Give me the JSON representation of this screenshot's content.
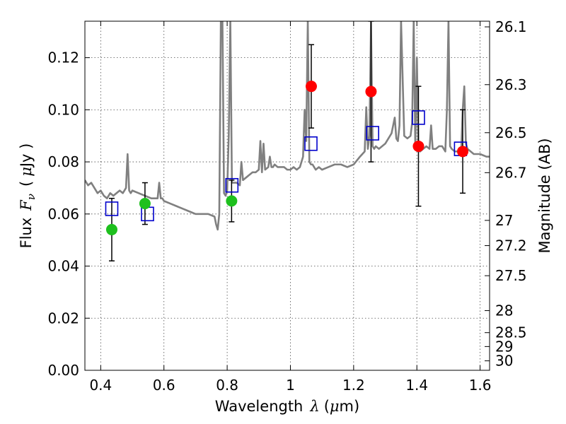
{
  "chart_data": {
    "type": "scatter",
    "xlabel": {
      "text": "Wavelength",
      "math": "λ",
      "unit_pre": "(",
      "unit_mu": "μ",
      "unit_post": "m)"
    },
    "ylabel": {
      "text": "Flux",
      "math": "F",
      "math_sub": "ν",
      "unit_open": "(",
      "unit_mu": "μ",
      "unit_close": "Jy )"
    },
    "y2label": "Magnitude (AB)",
    "xlim": [
      0.35,
      1.63
    ],
    "ylim": [
      0.0,
      0.134
    ],
    "grid": true,
    "x_ticks": [
      {
        "value": 0.4,
        "label": "0.4"
      },
      {
        "value": 0.6,
        "label": "0.6"
      },
      {
        "value": 0.8,
        "label": "0.8"
      },
      {
        "value": 1.0,
        "label": "1"
      },
      {
        "value": 1.2,
        "label": "1.2"
      },
      {
        "value": 1.4,
        "label": "1.4"
      },
      {
        "value": 1.6,
        "label": "1.6"
      }
    ],
    "y_ticks": [
      {
        "value": 0.0,
        "label": "0.00"
      },
      {
        "value": 0.02,
        "label": "0.02"
      },
      {
        "value": 0.04,
        "label": "0.04"
      },
      {
        "value": 0.06,
        "label": "0.06"
      },
      {
        "value": 0.08,
        "label": "0.08"
      },
      {
        "value": 0.1,
        "label": "0.10"
      },
      {
        "value": 0.12,
        "label": "0.12"
      }
    ],
    "y2_ticks": [
      {
        "value": 26.1,
        "label": "26.1"
      },
      {
        "value": 26.3,
        "label": "26.3"
      },
      {
        "value": 26.5,
        "label": "26.5"
      },
      {
        "value": 26.7,
        "label": "26.7"
      },
      {
        "value": 27.0,
        "label": "27"
      },
      {
        "value": 27.2,
        "label": "27.2"
      },
      {
        "value": 27.5,
        "label": "27.5"
      },
      {
        "value": 28.0,
        "label": "28"
      },
      {
        "value": 28.5,
        "label": "28.5"
      },
      {
        "value": 29.0,
        "label": "29"
      },
      {
        "value": 30.0,
        "label": "30"
      }
    ],
    "model_spectrum": {
      "color": "#808080",
      "x": [
        0.35,
        0.36,
        0.37,
        0.38,
        0.39,
        0.4,
        0.41,
        0.42,
        0.43,
        0.44,
        0.45,
        0.46,
        0.47,
        0.48,
        0.485,
        0.49,
        0.495,
        0.5,
        0.52,
        0.54,
        0.56,
        0.58,
        0.585,
        0.59,
        0.595,
        0.6,
        0.62,
        0.64,
        0.66,
        0.68,
        0.7,
        0.72,
        0.74,
        0.76,
        0.765,
        0.77,
        0.775,
        0.78,
        0.785,
        0.79,
        0.795,
        0.8,
        0.805,
        0.81,
        0.815,
        0.82,
        0.83,
        0.84,
        0.845,
        0.85,
        0.86,
        0.87,
        0.88,
        0.89,
        0.9,
        0.905,
        0.91,
        0.915,
        0.92,
        0.93,
        0.935,
        0.94,
        0.945,
        0.95,
        0.96,
        0.97,
        0.98,
        0.99,
        1.0,
        1.01,
        1.02,
        1.03,
        1.04,
        1.045,
        1.05,
        1.055,
        1.06,
        1.065,
        1.07,
        1.075,
        1.08,
        1.09,
        1.1,
        1.12,
        1.14,
        1.16,
        1.18,
        1.2,
        1.22,
        1.235,
        1.24,
        1.245,
        1.25,
        1.255,
        1.26,
        1.265,
        1.27,
        1.28,
        1.3,
        1.32,
        1.33,
        1.335,
        1.34,
        1.345,
        1.35,
        1.36,
        1.37,
        1.38,
        1.385,
        1.39,
        1.395,
        1.4,
        1.405,
        1.41,
        1.42,
        1.43,
        1.44,
        1.445,
        1.45,
        1.46,
        1.47,
        1.48,
        1.49,
        1.495,
        1.5,
        1.505,
        1.51,
        1.52,
        1.53,
        1.54,
        1.545,
        1.55,
        1.555,
        1.56,
        1.58,
        1.6,
        1.62,
        1.63
      ],
      "y": [
        0.073,
        0.071,
        0.072,
        0.07,
        0.068,
        0.069,
        0.067,
        0.066,
        0.068,
        0.067,
        0.068,
        0.069,
        0.068,
        0.07,
        0.083,
        0.069,
        0.068,
        0.069,
        0.068,
        0.067,
        0.066,
        0.066,
        0.072,
        0.066,
        0.066,
        0.065,
        0.064,
        0.063,
        0.062,
        0.061,
        0.06,
        0.06,
        0.06,
        0.059,
        0.056,
        0.054,
        0.06,
        0.134,
        0.134,
        0.068,
        0.067,
        0.069,
        0.09,
        0.134,
        0.072,
        0.072,
        0.072,
        0.071,
        0.08,
        0.073,
        0.074,
        0.075,
        0.076,
        0.076,
        0.077,
        0.088,
        0.076,
        0.087,
        0.077,
        0.078,
        0.082,
        0.078,
        0.078,
        0.079,
        0.078,
        0.078,
        0.078,
        0.077,
        0.077,
        0.078,
        0.077,
        0.078,
        0.082,
        0.1,
        0.088,
        0.134,
        0.08,
        0.079,
        0.079,
        0.078,
        0.077,
        0.078,
        0.077,
        0.078,
        0.079,
        0.079,
        0.078,
        0.079,
        0.082,
        0.084,
        0.101,
        0.085,
        0.09,
        0.134,
        0.086,
        0.085,
        0.086,
        0.085,
        0.087,
        0.091,
        0.097,
        0.089,
        0.088,
        0.094,
        0.134,
        0.09,
        0.089,
        0.09,
        0.095,
        0.134,
        0.086,
        0.12,
        0.085,
        0.084,
        0.085,
        0.086,
        0.085,
        0.094,
        0.085,
        0.085,
        0.086,
        0.086,
        0.084,
        0.1,
        0.134,
        0.086,
        0.085,
        0.084,
        0.084,
        0.083,
        0.1,
        0.109,
        0.087,
        0.085,
        0.083,
        0.083,
        0.082,
        0.082
      ]
    },
    "observed_green": {
      "color": "#1ec01e",
      "points": [
        {
          "x": 0.435,
          "y": 0.054,
          "err_lo": 0.042,
          "err_hi": 0.066
        },
        {
          "x": 0.54,
          "y": 0.064,
          "err_lo": 0.056,
          "err_hi": 0.072
        },
        {
          "x": 0.814,
          "y": 0.065,
          "err_lo": 0.057,
          "err_hi": 0.073
        }
      ]
    },
    "observed_red": {
      "color": "#ff0000",
      "points": [
        {
          "x": 1.066,
          "y": 0.109,
          "err_lo": 0.093,
          "err_hi": 0.125
        },
        {
          "x": 1.255,
          "y": 0.107,
          "err_lo": 0.08,
          "err_hi": 0.134
        },
        {
          "x": 1.405,
          "y": 0.086,
          "err_lo": 0.063,
          "err_hi": 0.109
        },
        {
          "x": 1.545,
          "y": 0.084,
          "err_lo": 0.068,
          "err_hi": 0.1
        }
      ]
    },
    "model_photometry": {
      "color": "#0000cc",
      "points": [
        {
          "x": 0.435,
          "y": 0.062
        },
        {
          "x": 0.548,
          "y": 0.06
        },
        {
          "x": 0.815,
          "y": 0.071
        },
        {
          "x": 1.065,
          "y": 0.087
        },
        {
          "x": 1.26,
          "y": 0.091
        },
        {
          "x": 1.405,
          "y": 0.097
        },
        {
          "x": 1.538,
          "y": 0.085
        }
      ]
    }
  }
}
